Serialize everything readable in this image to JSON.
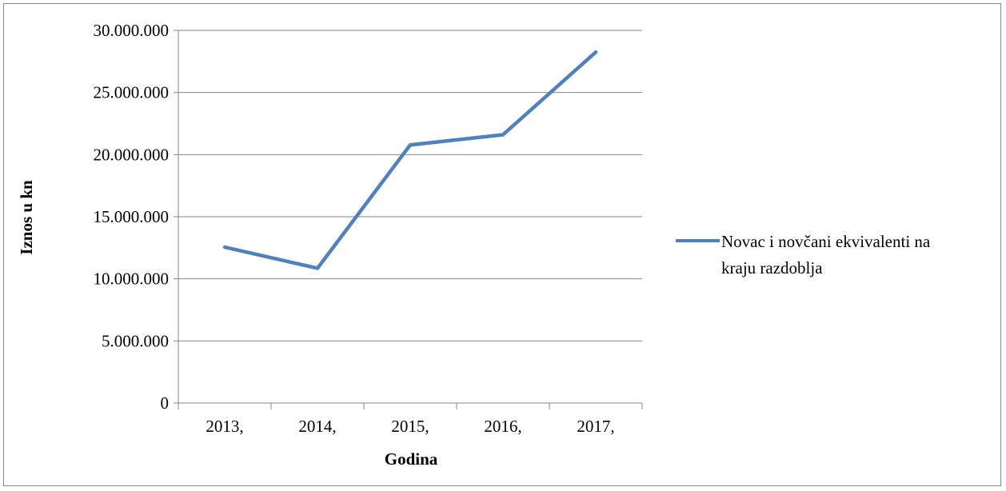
{
  "chart_data": {
    "type": "line",
    "categories": [
      "2013,",
      "2014,",
      "2015,",
      "2016,",
      "2017,"
    ],
    "series": [
      {
        "name": "Novac i novčani ekvivalenti na kraju razdoblja",
        "values": [
          12550000,
          10850000,
          20780000,
          21600000,
          28250000
        ],
        "color": "#4F81BD"
      }
    ],
    "xlabel": "Godina",
    "ylabel": "Iznos u kn",
    "ylim": [
      0,
      30000000
    ],
    "yticks": [
      0,
      5000000,
      10000000,
      15000000,
      20000000,
      25000000,
      30000000
    ],
    "ytick_labels": [
      "0",
      "5.000.000",
      "10.000.000",
      "15.000.000",
      "20.000.000",
      "25.000.000",
      "30.000.000"
    ],
    "grid": true,
    "legend_position": "right",
    "legend_lines": [
      "Novac i novčani ekvivalenti na",
      "kraju razdoblja"
    ],
    "gridline_color": "#868686"
  }
}
